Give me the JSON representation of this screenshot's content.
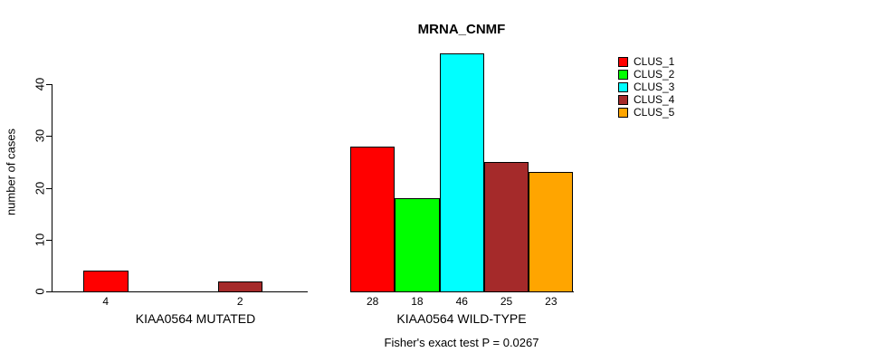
{
  "title": "MRNA_CNMF",
  "ylabel": "number of cases",
  "footer": "Fisher's exact test P = 0.0267",
  "legend": [
    {
      "label": "CLUS_1",
      "color": "#FF0000"
    },
    {
      "label": "CLUS_2",
      "color": "#00FF00"
    },
    {
      "label": "CLUS_3",
      "color": "#00FFFF"
    },
    {
      "label": "CLUS_4",
      "color": "#A52A2A"
    },
    {
      "label": "CLUS_5",
      "color": "#FFA500"
    }
  ],
  "chart_data": {
    "type": "bar",
    "title": "MRNA_CNMF",
    "ylabel": "number of cases",
    "xlabel": "",
    "ylim": [
      0,
      46
    ],
    "yticks": [
      0,
      10,
      20,
      30,
      40
    ],
    "grid": false,
    "legend_position": "right",
    "series_labels": [
      "CLUS_1",
      "CLUS_2",
      "CLUS_3",
      "CLUS_4",
      "CLUS_5"
    ],
    "series_colors": [
      "#FF0000",
      "#00FF00",
      "#00FFFF",
      "#A52A2A",
      "#FFA500"
    ],
    "groups": [
      {
        "label": "KIAA0564 MUTATED",
        "values": [
          4,
          0,
          0,
          2,
          0
        ],
        "bar_labels": [
          "4",
          "",
          "",
          "2",
          ""
        ]
      },
      {
        "label": "KIAA0564 WILD-TYPE",
        "values": [
          28,
          18,
          46,
          25,
          23
        ],
        "bar_labels": [
          "28",
          "18",
          "46",
          "25",
          "23"
        ]
      }
    ],
    "annotation": "Fisher's exact test P = 0.0267"
  }
}
